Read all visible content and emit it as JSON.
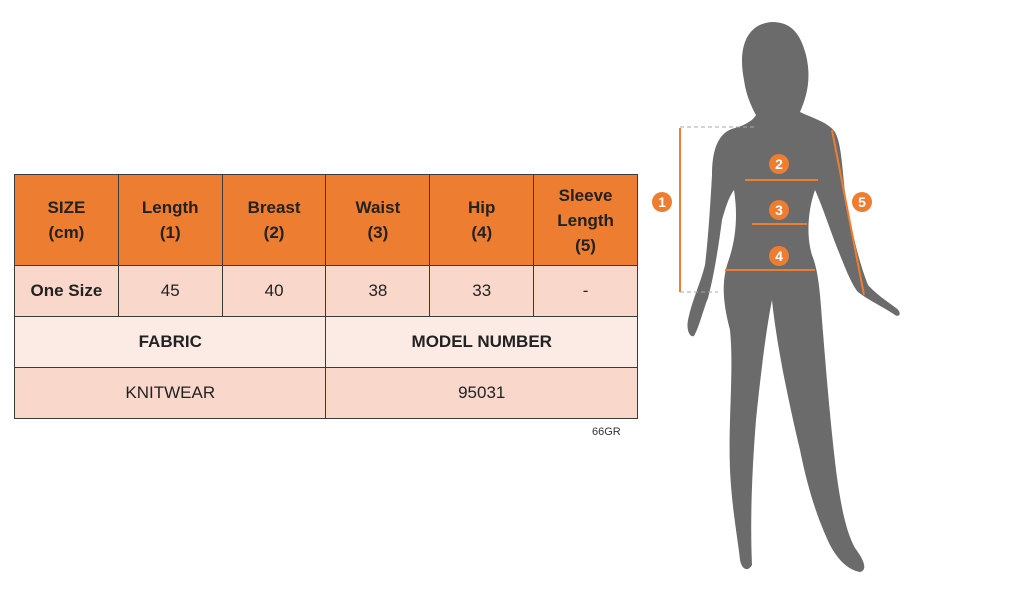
{
  "table": {
    "headers": [
      [
        "SIZE",
        "(cm)"
      ],
      [
        "Length",
        "(1)"
      ],
      [
        "Breast",
        "(2)"
      ],
      [
        "Waist",
        "(3)"
      ],
      [
        "Hip",
        "(4)"
      ],
      [
        "Sleeve",
        "Length",
        "(5)"
      ]
    ],
    "row": [
      "One Size",
      "45",
      "40",
      "38",
      "33",
      "-"
    ],
    "info_headers": [
      "FABRIC",
      "MODEL NUMBER"
    ],
    "info_values": [
      "KNITWEAR",
      "95031"
    ]
  },
  "code": "66GR",
  "figure": {
    "markers": [
      "1",
      "2",
      "3",
      "4",
      "5"
    ],
    "accent": "#ED7D31",
    "silhouette": "#6B6B6B"
  }
}
